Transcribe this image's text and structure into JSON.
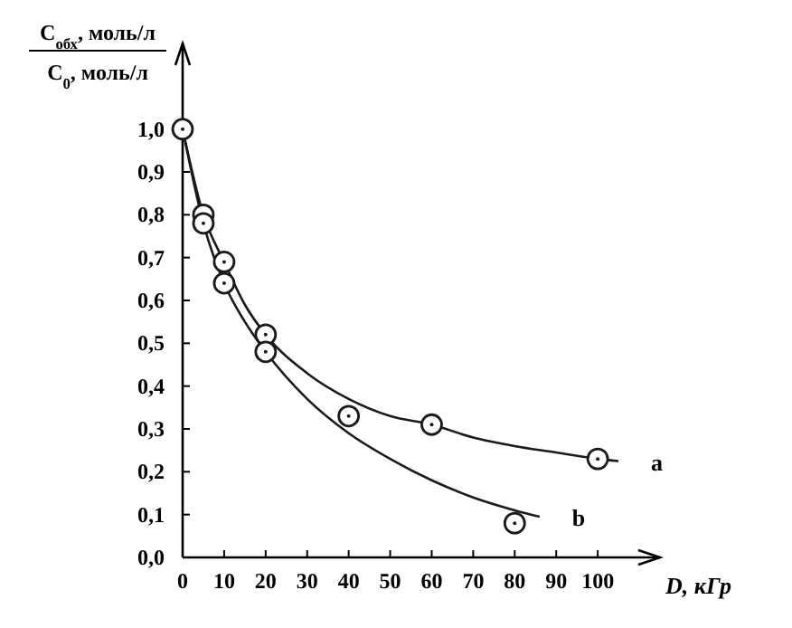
{
  "chart_data": {
    "type": "line",
    "ylabel": "C$_{обх}$, моль/л\nC$_{0}$, моль/л",
    "xlabel": "D, кГр",
    "xlim": [
      0,
      115
    ],
    "xticks": [
      0,
      10,
      20,
      30,
      40,
      50,
      60,
      70,
      80,
      90,
      100
    ],
    "ylim": [
      0,
      1.2
    ],
    "yticks": [
      {
        "value": 0,
        "label": "0,0"
      },
      {
        "value": 0.1,
        "label": "0,1"
      },
      {
        "value": 0.2,
        "label": "0,2"
      },
      {
        "value": 0.3,
        "label": "0,3"
      },
      {
        "value": 0.4,
        "label": "0,4"
      },
      {
        "value": 0.5,
        "label": "0,5"
      },
      {
        "value": 0.6,
        "label": "0,6"
      },
      {
        "value": 0.7,
        "label": "0,7"
      },
      {
        "value": 0.8,
        "label": "0,8"
      },
      {
        "value": 0.9,
        "label": "0,9"
      },
      {
        "value": 1,
        "label": "1,0"
      }
    ],
    "grid": false,
    "series": [
      {
        "name": "a",
        "marker": "none",
        "color": "#1a1a1a",
        "x": [
          0,
          5,
          10,
          15,
          20,
          30,
          40,
          50,
          60,
          70,
          80,
          90,
          100,
          105
        ],
        "values": [
          1.0,
          0.8,
          0.69,
          0.59,
          0.52,
          0.43,
          0.37,
          0.33,
          0.31,
          0.28,
          0.26,
          0.245,
          0.23,
          0.225
        ]
      },
      {
        "name": "b",
        "marker": "none",
        "color": "#1a1a1a",
        "x": [
          0,
          5,
          10,
          15,
          20,
          30,
          40,
          50,
          60,
          70,
          80,
          86
        ],
        "values": [
          1.0,
          0.78,
          0.64,
          0.55,
          0.48,
          0.37,
          0.29,
          0.23,
          0.18,
          0.14,
          0.11,
          0.095
        ]
      },
      {
        "type": "scatter",
        "marker": "circle",
        "color": "#1a1a1a",
        "x": [
          0,
          5,
          5,
          10,
          10,
          20,
          20,
          40,
          60,
          80,
          100
        ],
        "values": [
          1.0,
          0.8,
          0.78,
          0.69,
          0.64,
          0.52,
          0.48,
          0.33,
          0.31,
          0.08,
          0.23
        ]
      }
    ]
  }
}
